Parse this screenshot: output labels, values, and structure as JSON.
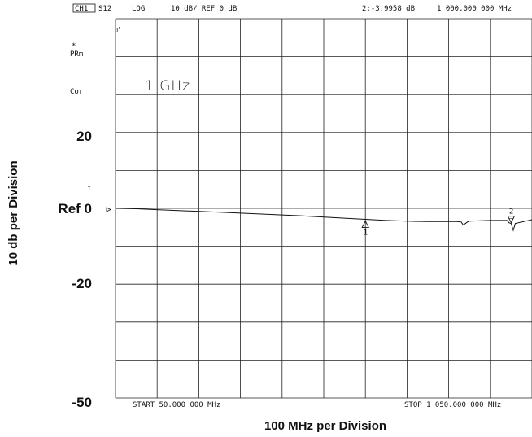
{
  "header": {
    "channel": "CH1",
    "parameter": "S12",
    "format": "LOG",
    "scale": "10 dB/ REF 0 dB",
    "marker_readout": "2:-3.9958 dB",
    "marker_freq": "1 000.000 000 MHz"
  },
  "side_labels": {
    "star": "*",
    "prm": "PRm",
    "cor": "Cor"
  },
  "annotation": "1 GHz",
  "chart_data": {
    "type": "line",
    "title": "",
    "xlabel": "100 MHz per Division",
    "ylabel": "10 db per Division",
    "xlim": [
      50,
      1050
    ],
    "x_unit": "MHz",
    "ylim": [
      -50,
      50
    ],
    "y_unit": "dB",
    "grid": true,
    "y_tick_labels": [
      {
        "label": "20",
        "value": 20
      },
      {
        "label": "Ref 0",
        "value": 0
      },
      {
        "label": "-20",
        "value": -20
      },
      {
        "label": "-50",
        "value": -50
      }
    ],
    "start_label": "START  50.000 000 MHz",
    "stop_label": "STOP 1 050.000 000 MHz",
    "series": [
      {
        "x": [
          50,
          100,
          200,
          300,
          400,
          500,
          600,
          650,
          700,
          750,
          800,
          850,
          870,
          880,
          885,
          895,
          900,
          950,
          990,
          995,
          1000,
          1005,
          1010,
          1050
        ],
        "y": [
          0,
          -0.1,
          -0.6,
          -1.0,
          -1.5,
          -2.0,
          -2.6,
          -2.9,
          -3.2,
          -3.4,
          -3.5,
          -3.5,
          -3.5,
          -3.6,
          -4.4,
          -3.6,
          -3.4,
          -3.2,
          -3.2,
          -3.8,
          -4.0,
          -5.8,
          -4.0,
          -3.0
        ]
      }
    ],
    "markers": [
      {
        "label": "1",
        "x": 650,
        "y": -2.9,
        "symbol": "triangle-up"
      },
      {
        "label": "2",
        "x": 1000,
        "y": -4.0,
        "symbol": "triangle-down"
      }
    ]
  }
}
